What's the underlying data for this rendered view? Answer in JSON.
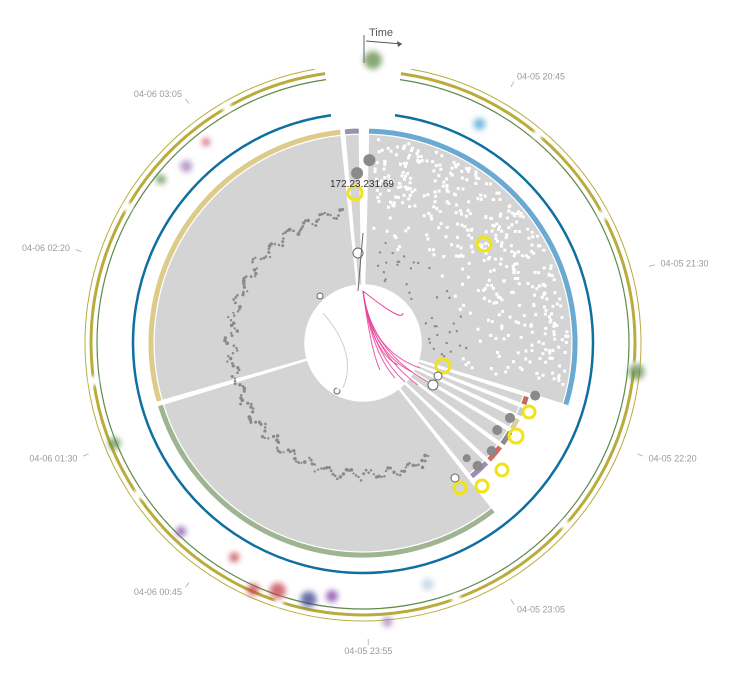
{
  "time_axis_label": "Time",
  "ip_label": "172.23.231.69",
  "time_labels": [
    {
      "text": "04-05 20:45",
      "angle": 30
    },
    {
      "text": "04-05 21:30",
      "angle": 75
    },
    {
      "text": "04-05 22:20",
      "angle": 112
    },
    {
      "text": "04-05 23:05",
      "angle": 150
    },
    {
      "text": "04-05 23:55",
      "angle": 179
    },
    {
      "text": "04-06 00:45",
      "angle": 216
    },
    {
      "text": "04-06 01:30",
      "angle": 248
    },
    {
      "text": "04-06 02:20",
      "angle": 288
    },
    {
      "text": "04-06 03:05",
      "angle": 324
    }
  ],
  "sectors": [
    {
      "name": "blue-sector",
      "start": 1.5,
      "end": 107,
      "band": "#6aa9d2",
      "r": 215
    },
    {
      "name": "small-sector-1",
      "start": 108,
      "end": 111,
      "band": "#c06a60",
      "r": 175
    },
    {
      "name": "small-sector-2",
      "start": 112,
      "end": 115,
      "band": "#b8cfe3",
      "r": 175
    },
    {
      "name": "small-sector-3",
      "start": 116,
      "end": 120,
      "band": "#d9cfa0",
      "r": 175
    },
    {
      "name": "small-sector-4",
      "start": 121,
      "end": 126,
      "band": "#8a8a8a",
      "r": 175
    },
    {
      "name": "small-sector-5",
      "start": 127,
      "end": 133,
      "band": "#d8685d",
      "r": 175
    },
    {
      "name": "small-sector-6",
      "start": 134,
      "end": 141,
      "band": "#a08ab8",
      "r": 175
    },
    {
      "name": "green-sector",
      "start": 142,
      "end": 253,
      "band": "#9fb491",
      "r": 215
    },
    {
      "name": "yellow-sector",
      "start": 254,
      "end": 354,
      "band": "#ddcb8a",
      "r": 215
    },
    {
      "name": "purple-sector",
      "start": 355,
      "end": 359,
      "band": "#9b8fb0",
      "r": 215
    }
  ],
  "colors": {
    "sector_fill": "#d4d4d4",
    "highlight": "#f2e21a",
    "connection": "#e8479a",
    "ring_blue": "#0f6fa0",
    "ring_olive": "#b9ac3c",
    "ring_green": "#5f8a4a"
  }
}
